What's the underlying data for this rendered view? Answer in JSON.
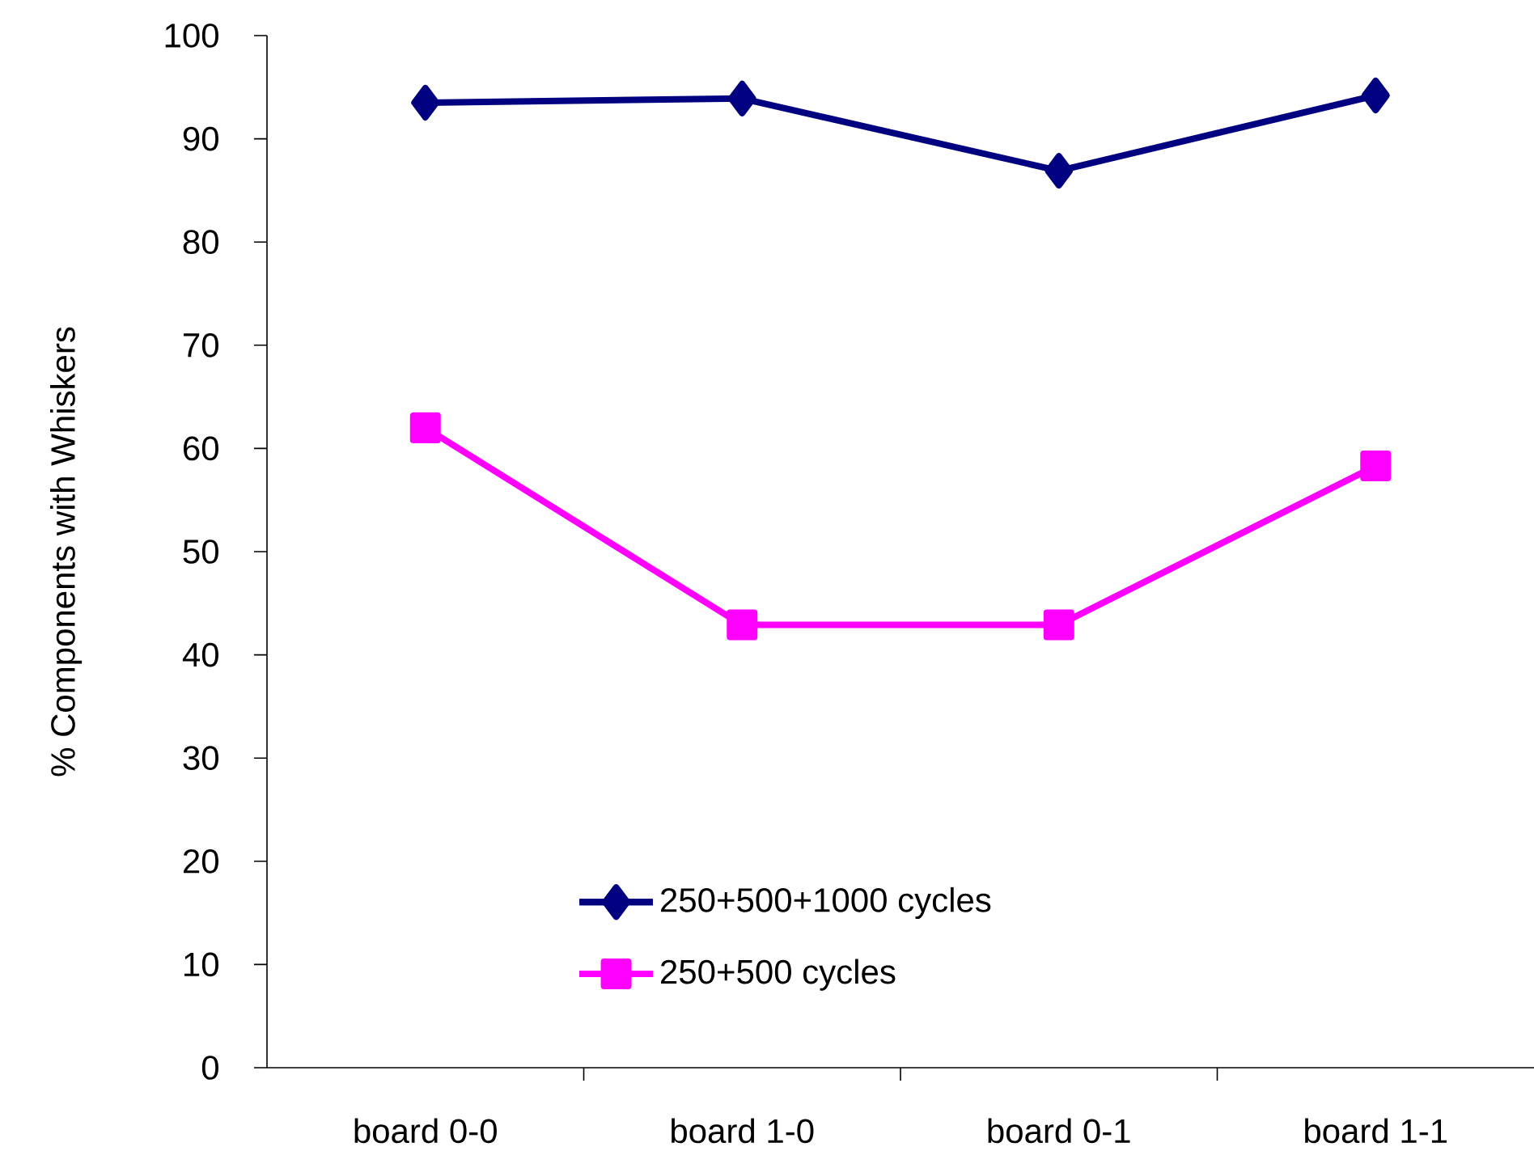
{
  "chart_data": {
    "type": "line",
    "ylabel": "% Components with Whiskers",
    "categories": [
      "board 0-0",
      "board 1-0",
      "board 0-1",
      "board 1-1"
    ],
    "series": [
      {
        "name": "250+500+1000 cycles",
        "color": "#000080",
        "marker": "diamond",
        "values": [
          93.5,
          93.9,
          86.9,
          94.2
        ]
      },
      {
        "name": "250+500 cycles",
        "color": "#ff00ff",
        "marker": "square",
        "values": [
          62.0,
          42.9,
          42.9,
          58.3
        ]
      }
    ],
    "ylim": [
      0,
      100
    ],
    "yticks": [
      0,
      10,
      20,
      30,
      40,
      50,
      60,
      70,
      80,
      90,
      100
    ],
    "grid": false,
    "legend": "bottom",
    "line_style": "solid"
  }
}
